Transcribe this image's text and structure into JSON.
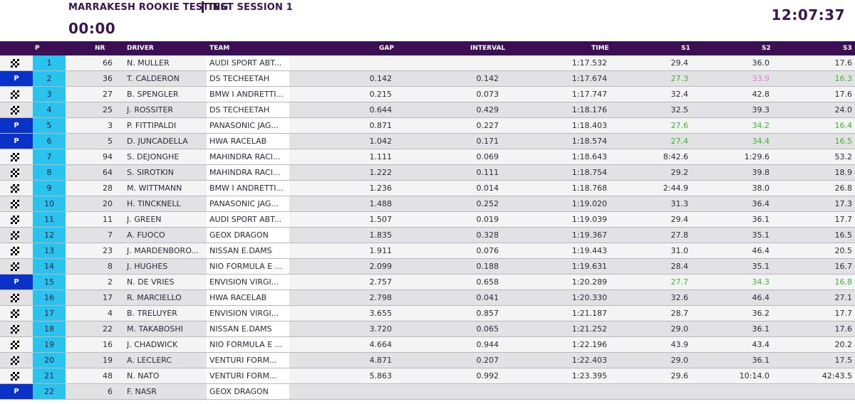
{
  "header": {
    "event": "MARRAKESH ROOKIE TESTING",
    "session": "TEST SESSION 1",
    "timer": "00:00",
    "clock": "12:07:37"
  },
  "columns": {
    "p": "P",
    "nr": "NR",
    "driver": "DRIVER",
    "team": "TEAM",
    "gap": "GAP",
    "interval": "INTERVAL",
    "time": "TIME",
    "s1": "S1",
    "s2": "S2",
    "s3": "S3"
  },
  "colors": {
    "brand_purple": "#3c0f55",
    "position_cyan": "#2bc2ee",
    "pit_blue": "#0a32c8",
    "personal_best_green": "#3db52b",
    "sector_pink": "#e87ad9"
  },
  "rows": [
    {
      "status": "flag",
      "pos": "1",
      "nr": "66",
      "driver": "N. MULLER",
      "team": "AUDI SPORT ABT...",
      "gap": "",
      "interval": "",
      "time": "1:17.532",
      "s1": "29.4",
      "s2": "36.0",
      "s3": "17.6",
      "s1c": "",
      "s2c": "",
      "s3c": ""
    },
    {
      "status": "pit",
      "pos": "2",
      "nr": "36",
      "driver": "T. CALDERON",
      "team": "DS TECHEETAH",
      "gap": "0.142",
      "interval": "0.142",
      "time": "1:17.674",
      "s1": "27.3",
      "s2": "33.9",
      "s3": "16.3",
      "s1c": "green",
      "s2c": "pink",
      "s3c": "green"
    },
    {
      "status": "flag",
      "pos": "3",
      "nr": "27",
      "driver": "B. SPENGLER",
      "team": "BMW I ANDRETTI...",
      "gap": "0.215",
      "interval": "0.073",
      "time": "1:17.747",
      "s1": "32.4",
      "s2": "42.8",
      "s3": "17.6",
      "s1c": "",
      "s2c": "",
      "s3c": ""
    },
    {
      "status": "flag",
      "pos": "4",
      "nr": "25",
      "driver": "J. ROSSITER",
      "team": "DS TECHEETAH",
      "gap": "0.644",
      "interval": "0.429",
      "time": "1:18.176",
      "s1": "32.5",
      "s2": "39.3",
      "s3": "24.0",
      "s1c": "",
      "s2c": "",
      "s3c": ""
    },
    {
      "status": "pit",
      "pos": "5",
      "nr": "3",
      "driver": "P. FITTIPALDI",
      "team": "PANASONIC JAG...",
      "gap": "0.871",
      "interval": "0.227",
      "time": "1:18.403",
      "s1": "27.6",
      "s2": "34.2",
      "s3": "16.4",
      "s1c": "green",
      "s2c": "green",
      "s3c": "green"
    },
    {
      "status": "pit",
      "pos": "6",
      "nr": "5",
      "driver": "D. JUNCADELLA",
      "team": "HWA RACELAB",
      "gap": "1.042",
      "interval": "0.171",
      "time": "1:18.574",
      "s1": "27.4",
      "s2": "34.4",
      "s3": "16.5",
      "s1c": "green",
      "s2c": "green",
      "s3c": "green"
    },
    {
      "status": "flag",
      "pos": "7",
      "nr": "94",
      "driver": "S. DEJONGHE",
      "team": "MAHINDRA RACI...",
      "gap": "1.111",
      "interval": "0.069",
      "time": "1:18.643",
      "s1": "8:42.6",
      "s2": "1:29.6",
      "s3": "53.2",
      "s1c": "",
      "s2c": "",
      "s3c": ""
    },
    {
      "status": "flag",
      "pos": "8",
      "nr": "64",
      "driver": "S. SIROTKIN",
      "team": "MAHINDRA RACI...",
      "gap": "1.222",
      "interval": "0.111",
      "time": "1:18.754",
      "s1": "29.2",
      "s2": "39.8",
      "s3": "18.9",
      "s1c": "",
      "s2c": "",
      "s3c": ""
    },
    {
      "status": "flag",
      "pos": "9",
      "nr": "28",
      "driver": "M. WITTMANN",
      "team": "BMW I ANDRETTI...",
      "gap": "1.236",
      "interval": "0.014",
      "time": "1:18.768",
      "s1": "2:44.9",
      "s2": "38.0",
      "s3": "26.8",
      "s1c": "",
      "s2c": "",
      "s3c": ""
    },
    {
      "status": "flag",
      "pos": "10",
      "nr": "20",
      "driver": "H. TINCKNELL",
      "team": "PANASONIC JAG...",
      "gap": "1.488",
      "interval": "0.252",
      "time": "1:19.020",
      "s1": "31.3",
      "s2": "36.4",
      "s3": "17.3",
      "s1c": "",
      "s2c": "",
      "s3c": ""
    },
    {
      "status": "flag",
      "pos": "11",
      "nr": "11",
      "driver": "J. GREEN",
      "team": "AUDI SPORT ABT...",
      "gap": "1.507",
      "interval": "0.019",
      "time": "1:19.039",
      "s1": "29.4",
      "s2": "36.1",
      "s3": "17.7",
      "s1c": "",
      "s2c": "",
      "s3c": ""
    },
    {
      "status": "flag",
      "pos": "12",
      "nr": "7",
      "driver": "A. FUOCO",
      "team": "GEOX DRAGON",
      "gap": "1.835",
      "interval": "0.328",
      "time": "1:19.367",
      "s1": "27.8",
      "s2": "35.1",
      "s3": "16.5",
      "s1c": "",
      "s2c": "",
      "s3c": ""
    },
    {
      "status": "flag",
      "pos": "13",
      "nr": "23",
      "driver": "J. MARDENBORO...",
      "team": "NISSAN E.DAMS",
      "gap": "1.911",
      "interval": "0.076",
      "time": "1:19.443",
      "s1": "31.0",
      "s2": "46.4",
      "s3": "20.5",
      "s1c": "",
      "s2c": "",
      "s3c": ""
    },
    {
      "status": "flag",
      "pos": "14",
      "nr": "8",
      "driver": "J. HUGHES",
      "team": "NIO FORMULA E ...",
      "gap": "2.099",
      "interval": "0.188",
      "time": "1:19.631",
      "s1": "28.4",
      "s2": "35.1",
      "s3": "16.7",
      "s1c": "",
      "s2c": "",
      "s3c": ""
    },
    {
      "status": "pit",
      "pos": "15",
      "nr": "2",
      "driver": "N. DE VRIES",
      "team": "ENVISION VIRGI...",
      "gap": "2.757",
      "interval": "0.658",
      "time": "1:20.289",
      "s1": "27.7",
      "s2": "34.3",
      "s3": "16.8",
      "s1c": "green",
      "s2c": "green",
      "s3c": "green"
    },
    {
      "status": "flag",
      "pos": "16",
      "nr": "17",
      "driver": "R. MARCIELLO",
      "team": "HWA RACELAB",
      "gap": "2.798",
      "interval": "0.041",
      "time": "1:20.330",
      "s1": "32.6",
      "s2": "46.4",
      "s3": "27.1",
      "s1c": "",
      "s2c": "",
      "s3c": ""
    },
    {
      "status": "flag",
      "pos": "17",
      "nr": "4",
      "driver": "B. TRELUYER",
      "team": "ENVISION VIRGI...",
      "gap": "3.655",
      "interval": "0.857",
      "time": "1:21.187",
      "s1": "28.7",
      "s2": "36.2",
      "s3": "17.7",
      "s1c": "",
      "s2c": "",
      "s3c": ""
    },
    {
      "status": "flag",
      "pos": "18",
      "nr": "22",
      "driver": "M. TAKABOSHI",
      "team": "NISSAN E.DAMS",
      "gap": "3.720",
      "interval": "0.065",
      "time": "1:21.252",
      "s1": "29.0",
      "s2": "36.1",
      "s3": "17.6",
      "s1c": "",
      "s2c": "",
      "s3c": ""
    },
    {
      "status": "flag",
      "pos": "19",
      "nr": "16",
      "driver": "J. CHADWICK",
      "team": "NIO FORMULA E ...",
      "gap": "4.664",
      "interval": "0.944",
      "time": "1:22.196",
      "s1": "43.9",
      "s2": "43.4",
      "s3": "20.2",
      "s1c": "",
      "s2c": "",
      "s3c": ""
    },
    {
      "status": "flag",
      "pos": "20",
      "nr": "19",
      "driver": "A. LECLERC",
      "team": "VENTURI FORM...",
      "gap": "4.871",
      "interval": "0.207",
      "time": "1:22.403",
      "s1": "29.0",
      "s2": "36.1",
      "s3": "17.5",
      "s1c": "",
      "s2c": "",
      "s3c": ""
    },
    {
      "status": "flag",
      "pos": "21",
      "nr": "48",
      "driver": "N. NATO",
      "team": "VENTURI FORM...",
      "gap": "5.863",
      "interval": "0.992",
      "time": "1:23.395",
      "s1": "29.6",
      "s2": "10:14.0",
      "s3": "42:43.5",
      "s1c": "",
      "s2c": "",
      "s3c": ""
    },
    {
      "status": "pit",
      "pos": "22",
      "nr": "6",
      "driver": "F. NASR",
      "team": "GEOX DRAGON",
      "gap": "",
      "interval": "",
      "time": "",
      "s1": "",
      "s2": "",
      "s3": "",
      "s1c": "",
      "s2c": "",
      "s3c": ""
    }
  ],
  "pit_label": "P"
}
